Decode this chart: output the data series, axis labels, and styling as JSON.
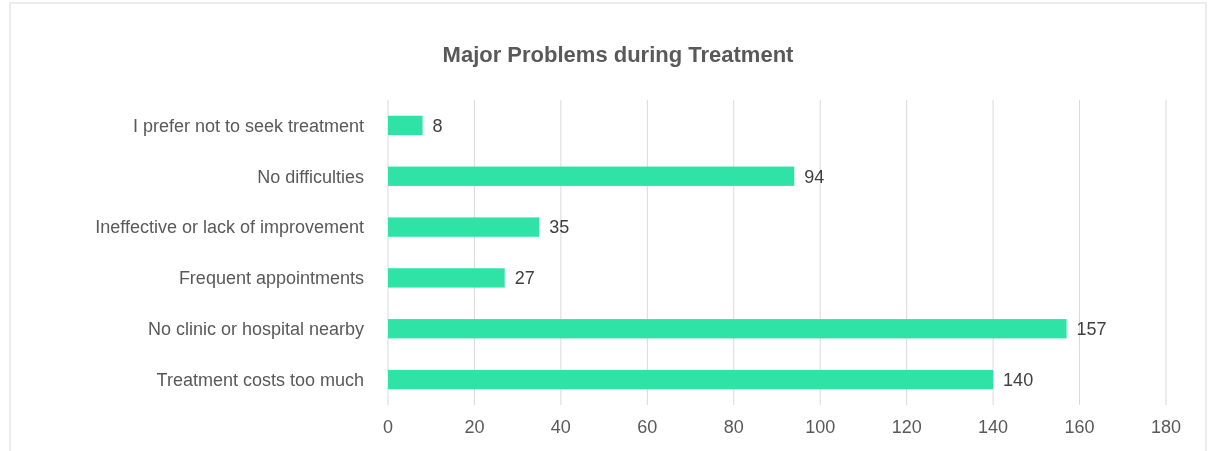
{
  "chart_data": {
    "type": "bar",
    "orientation": "horizontal",
    "title": "Major Problems during Treatment",
    "categories": [
      "I prefer not to seek treatment",
      "No difficulties",
      "Ineffective or lack of improvement",
      "Frequent appointments",
      "No clinic or hospital nearby",
      "Treatment costs too much"
    ],
    "values": [
      8,
      94,
      35,
      27,
      157,
      140
    ],
    "color": "#2ee3a5",
    "xlim": [
      0,
      180
    ],
    "xticks": [
      0,
      20,
      40,
      60,
      80,
      100,
      120,
      140,
      160,
      180
    ],
    "grid": "x",
    "data_labels": true
  }
}
